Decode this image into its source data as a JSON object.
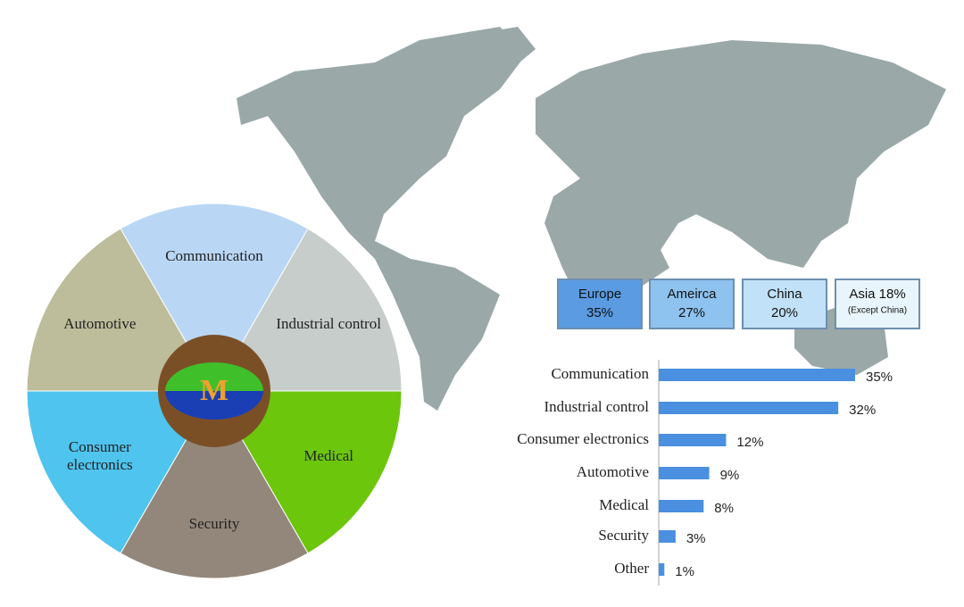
{
  "wheel": {
    "segments": [
      {
        "lines": [
          "Communication"
        ],
        "color": "#b9d7f5"
      },
      {
        "lines": [
          "Industrial control"
        ],
        "color": "#c6cdcb"
      },
      {
        "lines": [
          "Medical"
        ],
        "color": "#6cc60c"
      },
      {
        "lines": [
          "Security"
        ],
        "color": "#93877b"
      },
      {
        "lines": [
          "Consumer",
          "electronics"
        ],
        "color": "#4ec4ee"
      },
      {
        "lines": [
          "Automotive"
        ],
        "color": "#bdbc9b"
      }
    ],
    "logo": "M"
  },
  "regions": [
    {
      "name": "Europe",
      "share": "35%",
      "color": "#5a9be2"
    },
    {
      "name": "Ameirca",
      "share": "27%",
      "color": "#8ec2ef"
    },
    {
      "name": "China",
      "share": "20%",
      "color": "#c0e1f7"
    },
    {
      "name": "Asia 18%",
      "share": "(Except China)",
      "color": "#e9f5fc"
    }
  ],
  "chart_data": {
    "type": "bar",
    "orientation": "horizontal",
    "categories": [
      "Communication",
      "Industrial control",
      "Consumer electronics",
      "Automotive",
      "Medical",
      "Security",
      "Other"
    ],
    "values": [
      35,
      32,
      12,
      9,
      8,
      3,
      1
    ],
    "value_labels": [
      "35%",
      "32%",
      "12%",
      "9%",
      "8%",
      "3%",
      "1%"
    ],
    "color": "#4a8fe0",
    "xlim": [
      0,
      35
    ]
  }
}
